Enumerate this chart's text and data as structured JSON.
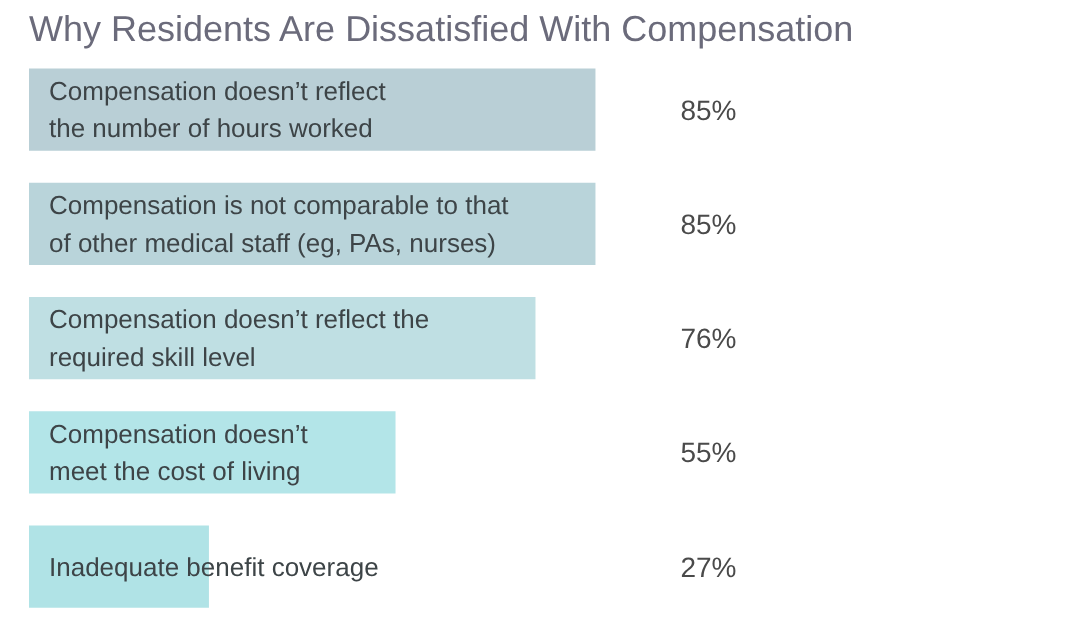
{
  "chart_data": {
    "type": "bar",
    "orientation": "horizontal",
    "title": "Why Residents Are Dissatisfied With Compensation",
    "categories": [
      "Compensation doesn’t reflect\nthe number of hours worked",
      "Compensation is not comparable to that\nof other medical staff (eg, PAs, nurses)",
      "Compensation doesn’t reflect the\nrequired skill level",
      "Compensation doesn’t\nmeet the cost of living",
      "Inadequate benefit coverage"
    ],
    "values": [
      85,
      85,
      76,
      55,
      27
    ],
    "value_labels": [
      "85%",
      "85%",
      "76%",
      "55%",
      "27%"
    ],
    "colors": [
      "#b9cfd6",
      "#b9d4da",
      "#bfdfe3",
      "#b3e5e8",
      "#b0e3e6"
    ]
  }
}
